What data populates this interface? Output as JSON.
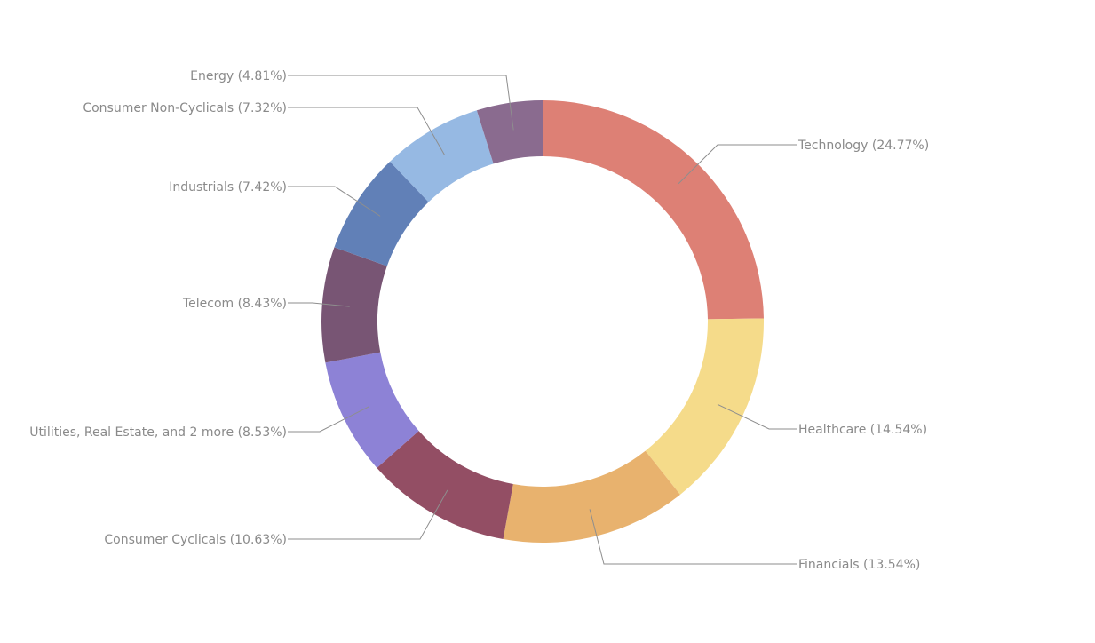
{
  "chart_data": {
    "type": "pie",
    "donut": true,
    "title": "",
    "legend": "none",
    "slices": [
      {
        "name": "Technology",
        "value": 24.77,
        "label": "Technology (24.77%)",
        "color": "#dd8075"
      },
      {
        "name": "Healthcare",
        "value": 14.54,
        "label": "Healthcare (14.54%)",
        "color": "#f5db8a"
      },
      {
        "name": "Financials",
        "value": 13.54,
        "label": "Financials (13.54%)",
        "color": "#e8b26e"
      },
      {
        "name": "Consumer Cyclicals",
        "value": 10.63,
        "label": "Consumer Cyclicals (10.63%)",
        "color": "#934e64"
      },
      {
        "name": "Utilities, Real Estate, and 2 more",
        "value": 8.53,
        "label": "Utilities, Real Estate, and 2 more (8.53%)",
        "color": "#8d82d6"
      },
      {
        "name": "Telecom",
        "value": 8.43,
        "label": "Telecom (8.43%)",
        "color": "#785574"
      },
      {
        "name": "Industrials",
        "value": 7.42,
        "label": "Industrials (7.42%)",
        "color": "#6180b7"
      },
      {
        "name": "Consumer Non-Cyclicals",
        "value": 7.32,
        "label": "Consumer Non-Cyclicals (7.32%)",
        "color": "#96b9e3"
      },
      {
        "name": "Energy",
        "value": 4.81,
        "label": "Energy (4.81%)",
        "color": "#8a6b8f"
      }
    ]
  }
}
